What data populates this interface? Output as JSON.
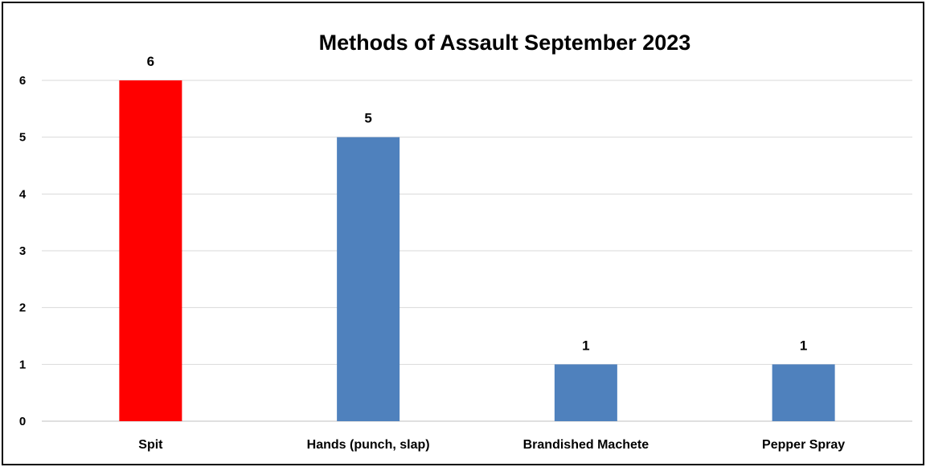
{
  "chart_data": {
    "type": "bar",
    "title": "Methods of Assault September 2023",
    "categories": [
      "Spit",
      "Hands (punch, slap)",
      "Brandished Machete",
      "Pepper Spray"
    ],
    "values": [
      6,
      5,
      1,
      1
    ],
    "bar_colors": [
      "#ff0000",
      "#4f81bd",
      "#4f81bd",
      "#4f81bd"
    ],
    "data_labels": [
      "6",
      "5",
      "1",
      "1"
    ],
    "ylim": [
      0,
      6
    ],
    "yticks": [
      0,
      1,
      2,
      3,
      4,
      5,
      6
    ],
    "xlabel": "",
    "ylabel": "",
    "grid": true,
    "legend": "none"
  }
}
